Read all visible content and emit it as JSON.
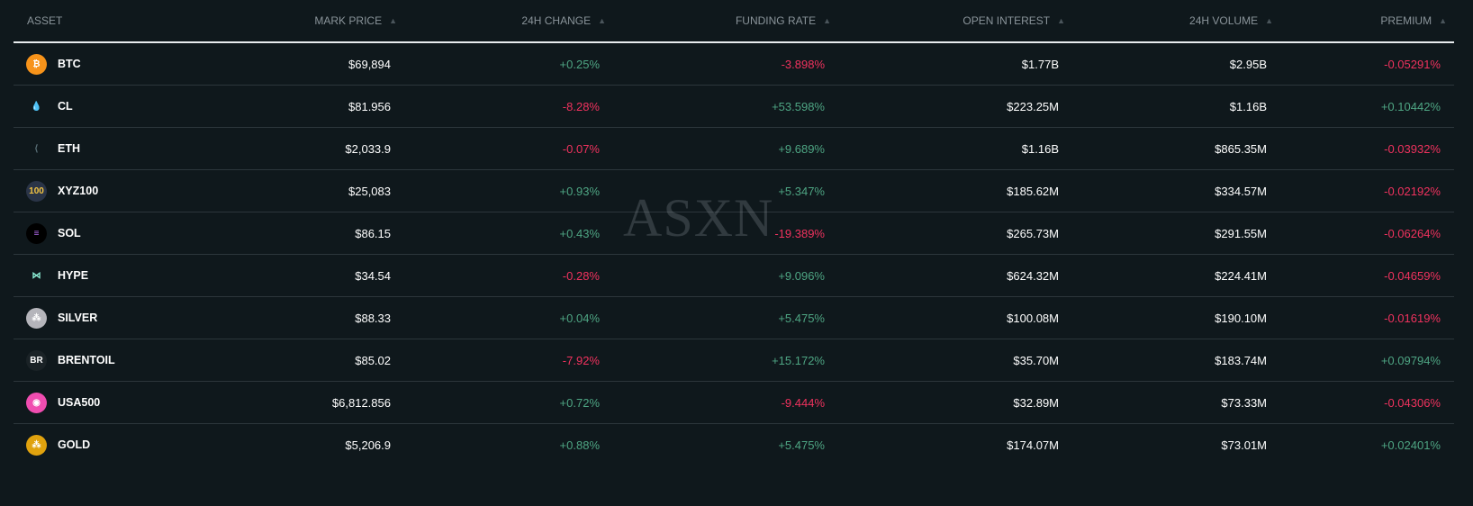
{
  "watermark": "ASXN",
  "headers": {
    "asset": "ASSET",
    "mark_price": "MARK PRICE",
    "change_24h": "24H CHANGE",
    "funding_rate": "FUNDING RATE",
    "open_interest": "OPEN INTEREST",
    "volume_24h": "24H VOLUME",
    "premium": "PREMIUM"
  },
  "colors": {
    "positive": "#4ea583",
    "negative": "#f0325e",
    "background": "#0f181c"
  },
  "rows": [
    {
      "symbol": "BTC",
      "icon": "bitcoin-icon",
      "mark_price": "$69,894",
      "change_24h": "+0.25%",
      "funding_rate": "-3.898%",
      "open_interest": "$1.77B",
      "volume_24h": "$2.95B",
      "premium": "-0.05291%"
    },
    {
      "symbol": "CL",
      "icon": "oil-drop-icon",
      "mark_price": "$81.956",
      "change_24h": "-8.28%",
      "funding_rate": "+53.598%",
      "open_interest": "$223.25M",
      "volume_24h": "$1.16B",
      "premium": "+0.10442%"
    },
    {
      "symbol": "ETH",
      "icon": "ethereum-icon",
      "mark_price": "$2,033.9",
      "change_24h": "-0.07%",
      "funding_rate": "+9.689%",
      "open_interest": "$1.16B",
      "volume_24h": "$865.35M",
      "premium": "-0.03932%"
    },
    {
      "symbol": "XYZ100",
      "icon": "xyz100-icon",
      "icon_text": "100",
      "mark_price": "$25,083",
      "change_24h": "+0.93%",
      "funding_rate": "+5.347%",
      "open_interest": "$185.62M",
      "volume_24h": "$334.57M",
      "premium": "-0.02192%"
    },
    {
      "symbol": "SOL",
      "icon": "solana-icon",
      "mark_price": "$86.15",
      "change_24h": "+0.43%",
      "funding_rate": "-19.389%",
      "open_interest": "$265.73M",
      "volume_24h": "$291.55M",
      "premium": "-0.06264%"
    },
    {
      "symbol": "HYPE",
      "icon": "hyperliquid-icon",
      "mark_price": "$34.54",
      "change_24h": "-0.28%",
      "funding_rate": "+9.096%",
      "open_interest": "$624.32M",
      "volume_24h": "$224.41M",
      "premium": "-0.04659%"
    },
    {
      "symbol": "SILVER",
      "icon": "silver-bars-icon",
      "mark_price": "$88.33",
      "change_24h": "+0.04%",
      "funding_rate": "+5.475%",
      "open_interest": "$100.08M",
      "volume_24h": "$190.10M",
      "premium": "-0.01619%"
    },
    {
      "symbol": "BRENTOIL",
      "icon": "brentoil-icon",
      "icon_text": "BR",
      "mark_price": "$85.02",
      "change_24h": "-7.92%",
      "funding_rate": "+15.172%",
      "open_interest": "$35.70M",
      "volume_24h": "$183.74M",
      "premium": "+0.09794%"
    },
    {
      "symbol": "USA500",
      "icon": "usa500-icon",
      "mark_price": "$6,812.856",
      "change_24h": "+0.72%",
      "funding_rate": "-9.444%",
      "open_interest": "$32.89M",
      "volume_24h": "$73.33M",
      "premium": "-0.04306%"
    },
    {
      "symbol": "GOLD",
      "icon": "gold-bars-icon",
      "mark_price": "$5,206.9",
      "change_24h": "+0.88%",
      "funding_rate": "+5.475%",
      "open_interest": "$174.07M",
      "volume_24h": "$73.01M",
      "premium": "+0.02401%"
    }
  ]
}
